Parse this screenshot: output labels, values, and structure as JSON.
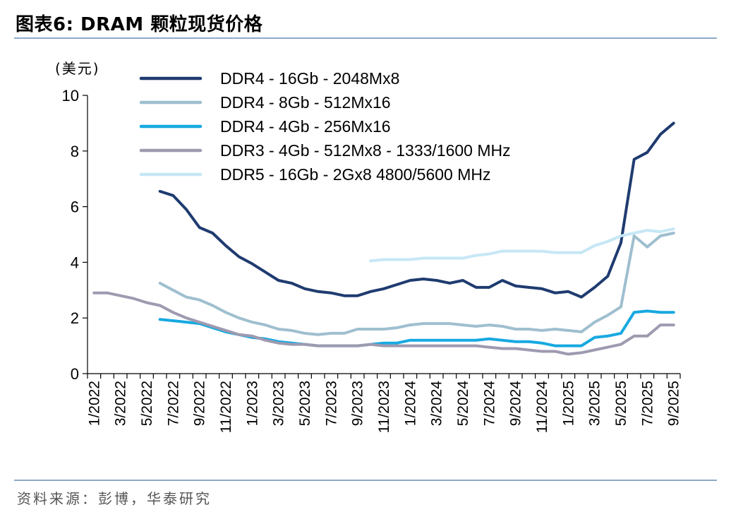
{
  "header": {
    "title": "图表6:   DRAM 颗粒现货价格"
  },
  "footer": {
    "source": "资料来源：彭博，华泰研究"
  },
  "chart_data": {
    "type": "line",
    "unit_label": "(美元)",
    "ylim": [
      0,
      10
    ],
    "yticks": [
      "0",
      "2",
      "4",
      "6",
      "8",
      "10"
    ],
    "x": [
      "1/2022",
      "2/2022",
      "3/2022",
      "4/2022",
      "5/2022",
      "6/2022",
      "7/2022",
      "8/2022",
      "9/2022",
      "10/2022",
      "11/2022",
      "12/2022",
      "1/2023",
      "2/2023",
      "3/2023",
      "4/2023",
      "5/2023",
      "6/2023",
      "7/2023",
      "8/2023",
      "9/2023",
      "10/2023",
      "11/2023",
      "12/2023",
      "1/2024",
      "2/2024",
      "3/2024",
      "4/2024",
      "5/2024",
      "6/2024",
      "7/2024",
      "8/2024",
      "9/2024",
      "10/2024",
      "11/2024",
      "12/2024",
      "1/2025",
      "2/2025",
      "3/2025",
      "4/2025",
      "5/2025",
      "6/2025",
      "7/2025",
      "8/2025",
      "9/2025"
    ],
    "xtick_labels": [
      "1/2022",
      "3/2022",
      "5/2022",
      "7/2022",
      "9/2022",
      "11/2022",
      "1/2023",
      "3/2023",
      "5/2023",
      "7/2023",
      "9/2023",
      "11/2023",
      "1/2024",
      "3/2024",
      "5/2024",
      "7/2024",
      "9/2024",
      "11/2024",
      "1/2025",
      "3/2025",
      "5/2025",
      "7/2025",
      "9/2025"
    ],
    "grid": false,
    "legend_position": "top",
    "series": [
      {
        "name": "DDR4 - 16Gb - 2048Mx8",
        "color": "#1f3b70",
        "values": [
          null,
          null,
          null,
          null,
          null,
          6.55,
          6.4,
          5.9,
          5.25,
          5.05,
          4.6,
          4.2,
          3.95,
          3.65,
          3.35,
          3.25,
          3.05,
          2.95,
          2.9,
          2.8,
          2.8,
          2.95,
          3.05,
          3.2,
          3.35,
          3.4,
          3.35,
          3.25,
          3.35,
          3.1,
          3.1,
          3.35,
          3.15,
          3.1,
          3.05,
          2.9,
          2.95,
          2.75,
          3.1,
          3.5,
          4.7,
          7.7,
          7.95,
          8.6,
          9.0
        ]
      },
      {
        "name": "DDR4 - 8Gb - 512Mx16",
        "color": "#9fbfcf",
        "values": [
          null,
          null,
          null,
          null,
          null,
          3.25,
          3.0,
          2.75,
          2.65,
          2.45,
          2.2,
          2.0,
          1.85,
          1.75,
          1.6,
          1.55,
          1.45,
          1.4,
          1.45,
          1.45,
          1.6,
          1.6,
          1.6,
          1.65,
          1.75,
          1.8,
          1.8,
          1.8,
          1.75,
          1.7,
          1.75,
          1.7,
          1.6,
          1.6,
          1.55,
          1.6,
          1.55,
          1.5,
          1.85,
          2.1,
          2.4,
          4.95,
          4.55,
          4.95,
          5.05
        ]
      },
      {
        "name": "DDR4 - 4Gb - 256Mx16",
        "color": "#17a9e1",
        "values": [
          null,
          null,
          null,
          null,
          null,
          1.95,
          1.9,
          1.85,
          1.8,
          1.65,
          1.5,
          1.4,
          1.3,
          1.25,
          1.15,
          1.1,
          1.05,
          1.0,
          1.0,
          1.0,
          1.0,
          1.05,
          1.1,
          1.1,
          1.2,
          1.2,
          1.2,
          1.2,
          1.2,
          1.2,
          1.25,
          1.2,
          1.15,
          1.15,
          1.1,
          1.0,
          1.0,
          1.0,
          1.3,
          1.35,
          1.45,
          2.2,
          2.25,
          2.2,
          2.2
        ]
      },
      {
        "name": "DDR3 - 4Gb - 512Mx8 - 1333/1600 MHz",
        "color": "#9e9ab0",
        "values": [
          2.9,
          2.9,
          2.8,
          2.7,
          2.55,
          2.45,
          2.2,
          2.0,
          1.85,
          1.7,
          1.55,
          1.4,
          1.35,
          1.2,
          1.1,
          1.05,
          1.05,
          1.0,
          1.0,
          1.0,
          1.0,
          1.05,
          1.0,
          1.0,
          1.0,
          1.0,
          1.0,
          1.0,
          1.0,
          1.0,
          0.95,
          0.9,
          0.9,
          0.85,
          0.8,
          0.8,
          0.7,
          0.75,
          0.85,
          0.95,
          1.05,
          1.35,
          1.35,
          1.75,
          1.75
        ]
      },
      {
        "name": "DDR5 - 16Gb - 2Gx8 4800/5600 MHz",
        "color": "#c6e7f5",
        "values": [
          null,
          null,
          null,
          null,
          null,
          null,
          null,
          null,
          null,
          null,
          null,
          null,
          null,
          null,
          null,
          null,
          null,
          null,
          null,
          null,
          null,
          4.05,
          4.1,
          4.1,
          4.1,
          4.15,
          4.15,
          4.15,
          4.15,
          4.25,
          4.3,
          4.4,
          4.4,
          4.4,
          4.4,
          4.35,
          4.35,
          4.35,
          4.6,
          4.75,
          4.95,
          5.05,
          5.15,
          5.1,
          5.2
        ]
      }
    ]
  }
}
